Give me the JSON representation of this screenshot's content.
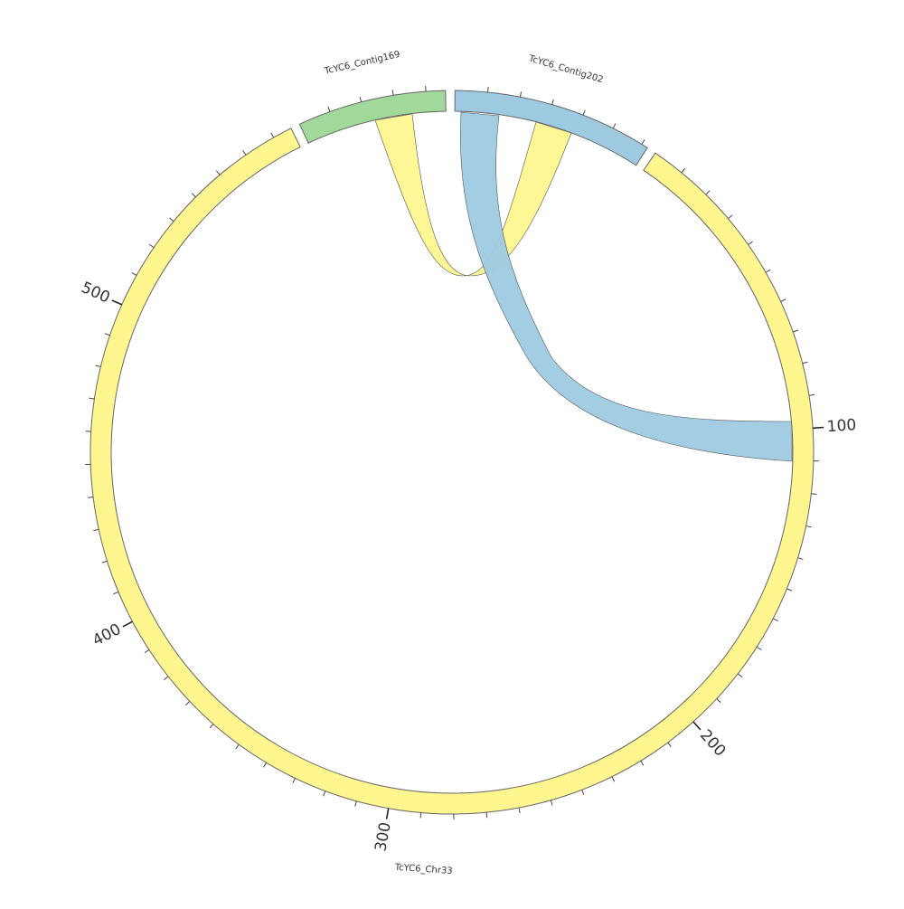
{
  "sequences": [
    {
      "id": "chr33",
      "label": "TcYC6_Chr33",
      "length": 576,
      "color": "#FFF68F"
    },
    {
      "id": "contig169",
      "label": "TcYC6_Contig169",
      "length": 46,
      "color": "#A1D99B"
    },
    {
      "id": "contig202",
      "label": "TcYC6_Contig202",
      "length": 62,
      "color": "#9ECAE1"
    }
  ],
  "major_tick_labels": [
    "100",
    "200",
    "300",
    "400",
    "500"
  ],
  "links": [
    {
      "source": "chr33",
      "target": "chr33",
      "color": "#FFF68F"
    },
    {
      "source": "contig202",
      "target": "chr33",
      "color": "#9ECAE1"
    }
  ]
}
